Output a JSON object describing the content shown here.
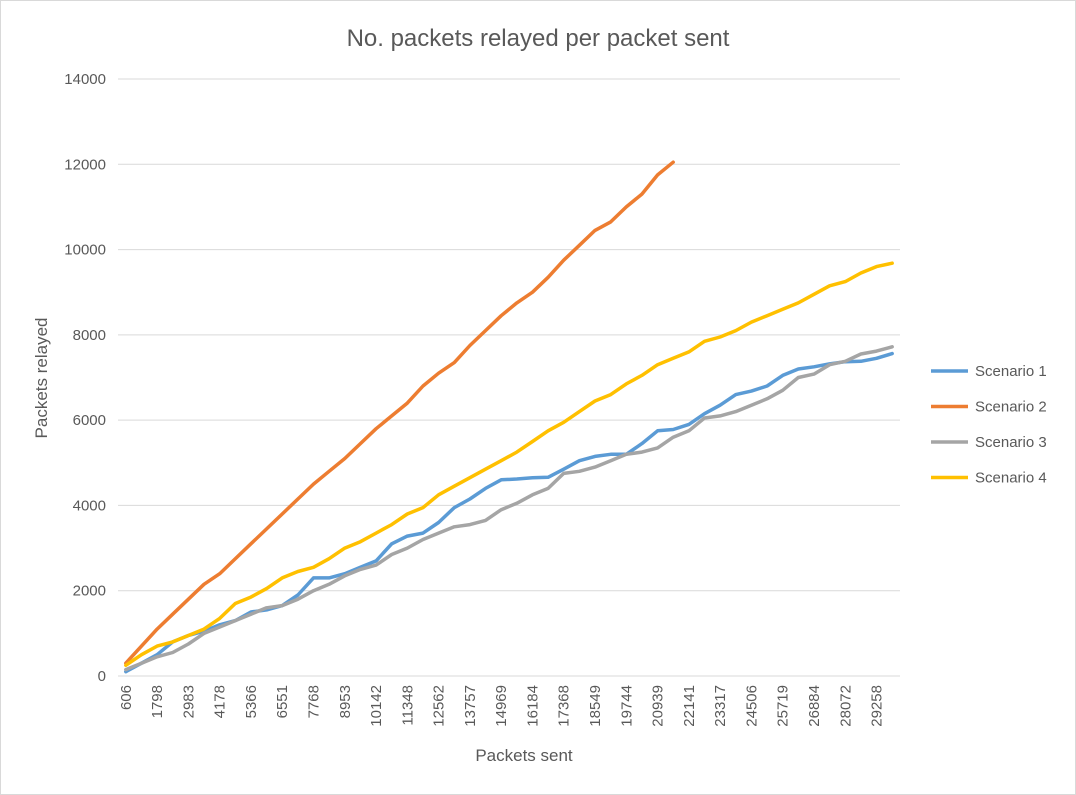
{
  "chart_data": {
    "type": "line",
    "title": "No. packets relayed per packet sent",
    "xlabel": "Packets sent",
    "ylabel": "Packets relayed",
    "ylim": [
      0,
      14000
    ],
    "yticks": [
      0,
      2000,
      4000,
      6000,
      8000,
      10000,
      12000,
      14000
    ],
    "grid": true,
    "legend_position": "right",
    "x_tick_labels": [
      "606",
      "1798",
      "2983",
      "4178",
      "5366",
      "6551",
      "7768",
      "8953",
      "10142",
      "11348",
      "12562",
      "13757",
      "14969",
      "16184",
      "17368",
      "18549",
      "19744",
      "20939",
      "22141",
      "23317",
      "24506",
      "25719",
      "26884",
      "28072",
      "29258"
    ],
    "x_tick_step": 2,
    "num_points": 50,
    "series": [
      {
        "name": "Scenario 1",
        "color": "#5b9bd5",
        "values": [
          100,
          300,
          500,
          800,
          950,
          1050,
          1200,
          1300,
          1500,
          1550,
          1650,
          1900,
          2300,
          2300,
          2400,
          2550,
          2700,
          3100,
          3280,
          3350,
          3600,
          3950,
          4150,
          4400,
          4600,
          4620,
          4650,
          4660,
          4850,
          5050,
          5150,
          5200,
          5200,
          5450,
          5750,
          5780,
          5900,
          6150,
          6350,
          6600,
          6680,
          6800,
          7050,
          7200,
          7250,
          7320,
          7370,
          7380,
          7450,
          7560
        ]
      },
      {
        "name": "Scenario 2",
        "color": "#ed7d31",
        "values": [
          300,
          700,
          1100,
          1450,
          1800,
          2150,
          2400,
          2750,
          3100,
          3450,
          3800,
          4150,
          4500,
          4800,
          5100,
          5450,
          5800,
          6100,
          6400,
          6800,
          7100,
          7350,
          7750,
          8100,
          8450,
          8750,
          9000,
          9350,
          9750,
          10100,
          10450,
          10650,
          11000,
          11300,
          11750,
          12050
        ]
      },
      {
        "name": "Scenario 3",
        "color": "#a5a5a5",
        "values": [
          150,
          300,
          450,
          550,
          750,
          1000,
          1150,
          1300,
          1450,
          1600,
          1650,
          1800,
          2000,
          2150,
          2350,
          2500,
          2600,
          2850,
          3000,
          3200,
          3350,
          3500,
          3550,
          3650,
          3900,
          4050,
          4250,
          4400,
          4750,
          4800,
          4900,
          5050,
          5200,
          5250,
          5350,
          5600,
          5750,
          6050,
          6100,
          6200,
          6350,
          6500,
          6700,
          7000,
          7080,
          7300,
          7380,
          7550,
          7620,
          7720
        ]
      },
      {
        "name": "Scenario 4",
        "color": "#ffc000",
        "values": [
          250,
          500,
          700,
          800,
          950,
          1100,
          1350,
          1700,
          1850,
          2050,
          2300,
          2450,
          2550,
          2750,
          3000,
          3150,
          3350,
          3550,
          3800,
          3950,
          4250,
          4450,
          4650,
          4850,
          5050,
          5250,
          5500,
          5750,
          5950,
          6200,
          6450,
          6600,
          6850,
          7050,
          7300,
          7450,
          7600,
          7850,
          7950,
          8100,
          8300,
          8450,
          8600,
          8750,
          8950,
          9150,
          9250,
          9450,
          9600,
          9680
        ]
      }
    ]
  }
}
